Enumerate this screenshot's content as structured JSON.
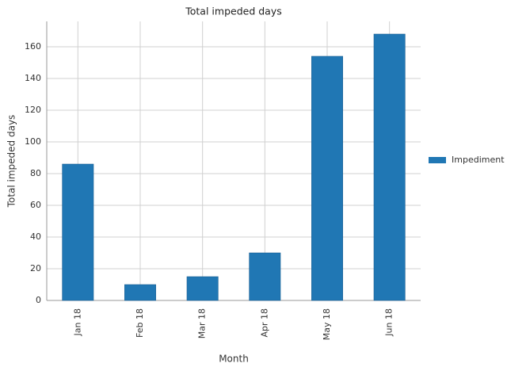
{
  "chart_data": {
    "type": "bar",
    "title": "Total impeded days",
    "x_label": "Month",
    "y_label": "Total impeded days",
    "categories": [
      "Jan 18",
      "Feb 18",
      "Mar 18",
      "Apr 18",
      "May 18",
      "Jun 18"
    ],
    "series": [
      {
        "name": "Impediment",
        "color": "#2077b4",
        "values": [
          86,
          10,
          15,
          30,
          154,
          168
        ]
      }
    ],
    "ylim": [
      0,
      176
    ],
    "yticks": [
      0,
      20,
      40,
      60,
      80,
      100,
      120,
      140,
      160
    ],
    "grid": true,
    "legend": "right"
  }
}
